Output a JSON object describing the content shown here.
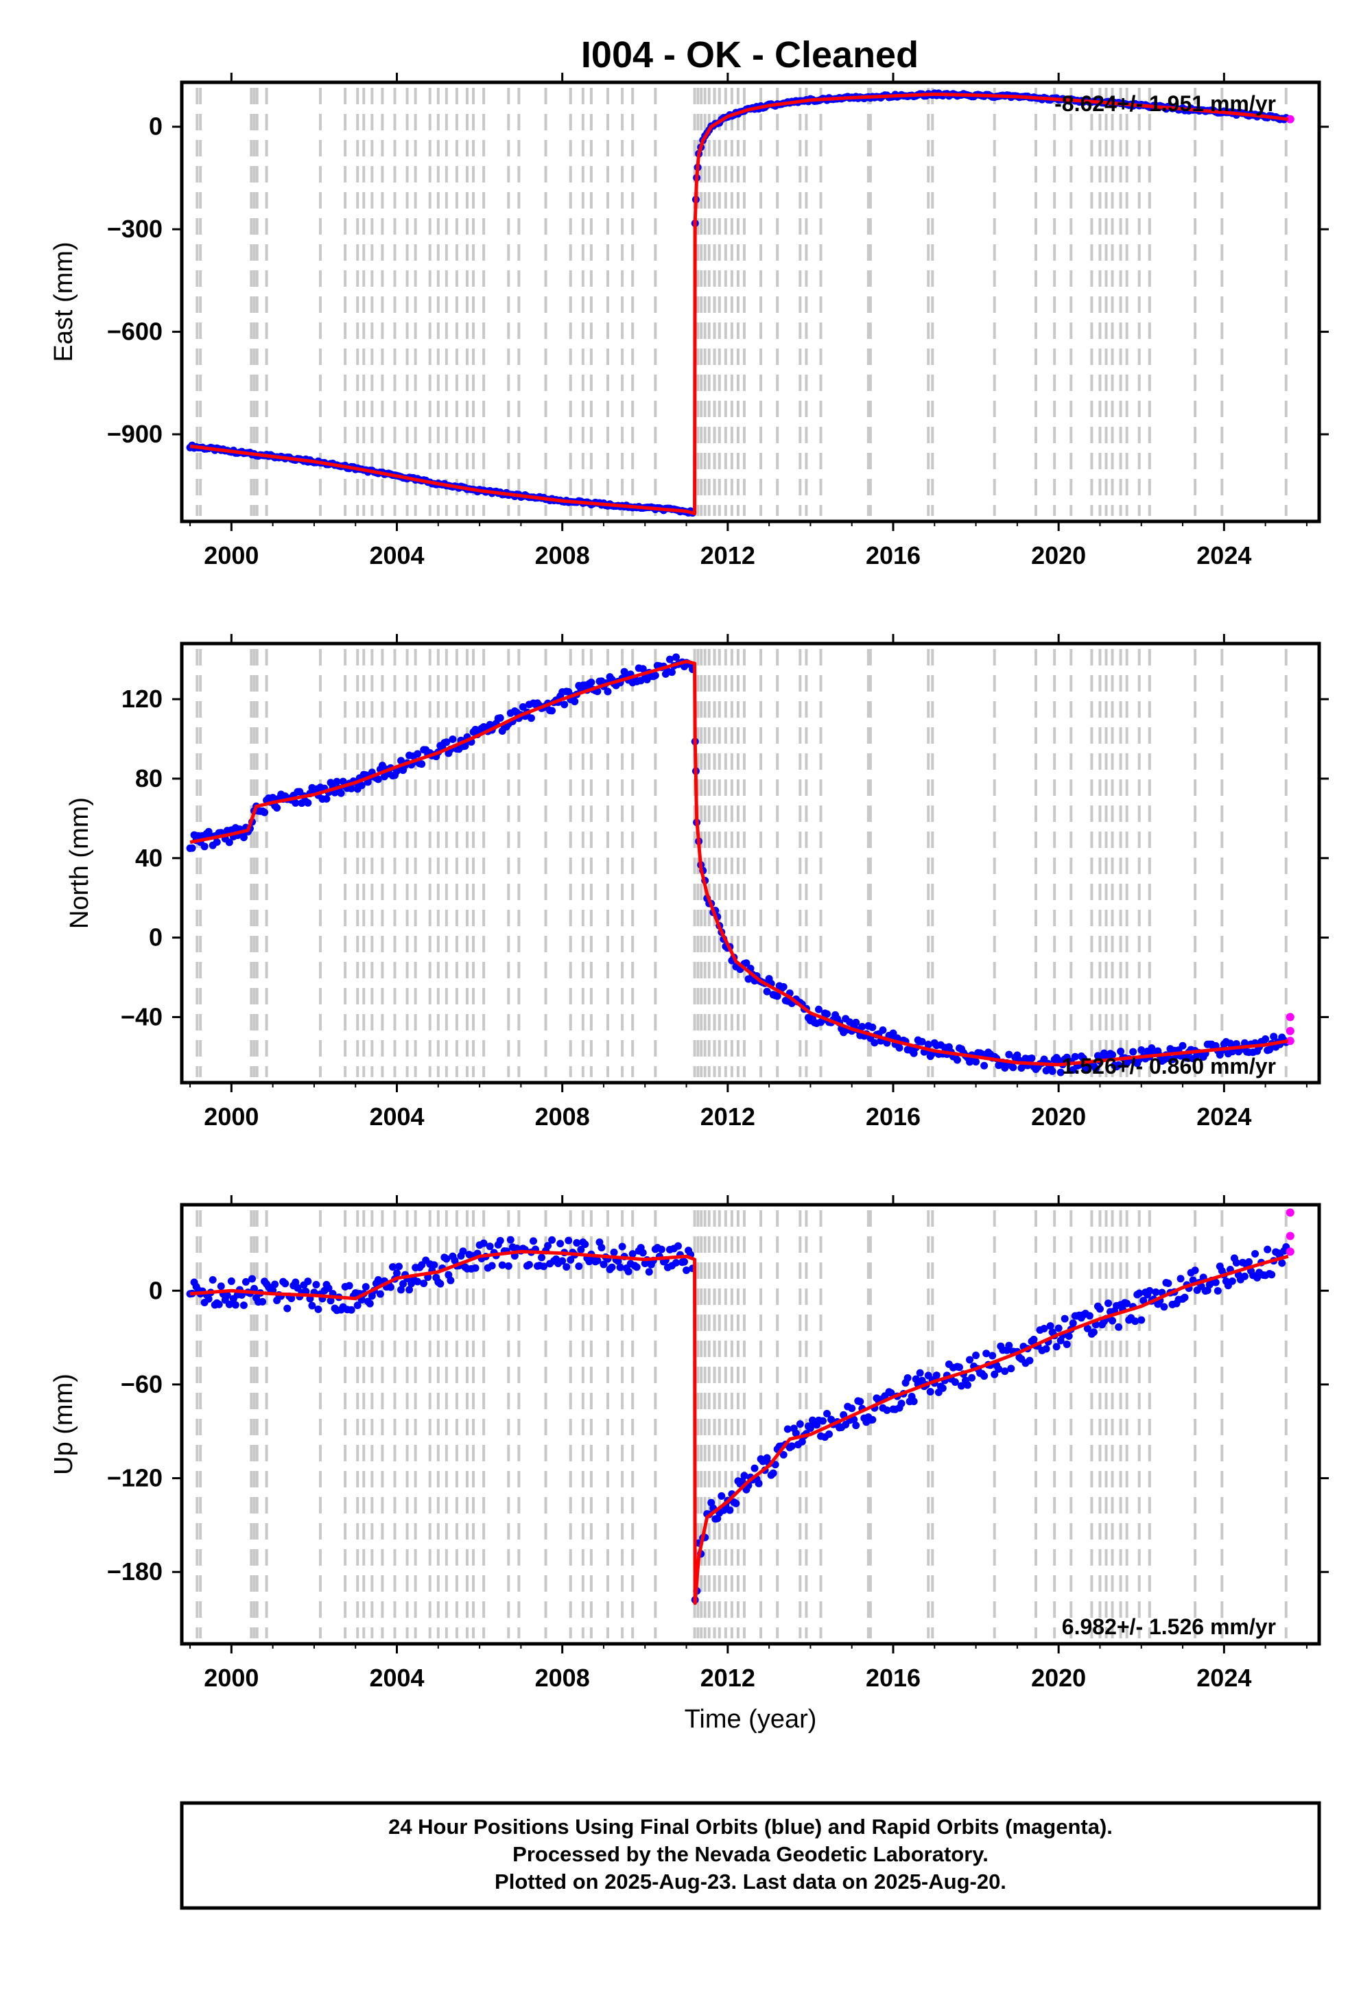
{
  "title": "I004  - OK - Cleaned",
  "colors": {
    "final_orbits": "#0000ff",
    "rapid_orbits": "#ff00ff",
    "model_line": "#ff0000",
    "event_lines": "#c8c8c8",
    "frame": "#000000"
  },
  "chart_data": [
    {
      "type": "scatter",
      "panel": "east",
      "ylabel": "East (mm)",
      "xlabel": "",
      "xlim": [
        1998.8,
        2026.3
      ],
      "ylim": [
        -1155,
        130
      ],
      "x_ticks": [
        "2000",
        "2004",
        "2008",
        "2012",
        "2016",
        "2020",
        "2024"
      ],
      "y_ticks": [
        "0",
        "−300",
        "−600",
        "−900"
      ],
      "y_tick_values": [
        0,
        -300,
        -600,
        -900
      ],
      "rate_text": "-8.624+/- 1.951 mm/yr",
      "series": [
        {
          "color": "#0000ff",
          "markers": "dots",
          "x": [
            1999.0,
            2000.0,
            2001.0,
            2002.0,
            2003.0,
            2004.0,
            2005.0,
            2006.0,
            2007.0,
            2008.0,
            2009.0,
            2010.0,
            2011.0,
            2011.2
          ],
          "y": [
            -935,
            -950,
            -965,
            -980,
            -1000,
            -1022,
            -1045,
            -1065,
            -1080,
            -1095,
            -1105,
            -1115,
            -1125,
            -1132
          ]
        },
        {
          "color": "#0000ff",
          "markers": "dots",
          "x": [
            2011.21,
            2011.25,
            2011.3,
            2011.4,
            2011.6,
            2012.0,
            2012.5,
            2013.0,
            2014.0,
            2015.0,
            2016.0,
            2017.0,
            2018.0,
            2019.0,
            2020.0,
            2021.0,
            2022.0,
            2023.0,
            2024.0,
            2025.0,
            2025.55
          ],
          "y": [
            -280,
            -150,
            -80,
            -40,
            0,
            30,
            50,
            62,
            78,
            85,
            90,
            95,
            92,
            88,
            80,
            72,
            62,
            52,
            42,
            30,
            22
          ]
        },
        {
          "color": "#ff00ff",
          "markers": "dots",
          "x": [
            2025.6
          ],
          "y": [
            22
          ]
        }
      ]
    },
    {
      "type": "scatter",
      "panel": "north",
      "ylabel": "North (mm)",
      "xlabel": "",
      "xlim": [
        1998.8,
        2026.3
      ],
      "ylim": [
        -73,
        148
      ],
      "x_ticks": [
        "2000",
        "2004",
        "2008",
        "2012",
        "2016",
        "2020",
        "2024"
      ],
      "y_ticks": [
        "120",
        "80",
        "40",
        "0",
        "−40"
      ],
      "y_tick_values": [
        120,
        80,
        40,
        0,
        -40
      ],
      "rate_text": "1.526+/- 0.860 mm/yr",
      "series": [
        {
          "color": "#0000ff",
          "markers": "dots",
          "x": [
            1999.0,
            1999.5,
            2000.0,
            2000.4,
            2000.6,
            2001.0,
            2002.0,
            2003.0,
            2004.0,
            2005.0,
            2006.0,
            2007.0,
            2008.0,
            2009.0,
            2010.0,
            2011.0,
            2011.2
          ],
          "y": [
            48,
            50,
            52,
            54,
            66,
            68,
            72,
            78,
            86,
            93,
            102,
            112,
            120,
            127,
            133,
            139,
            138
          ]
        },
        {
          "color": "#0000ff",
          "markers": "dots",
          "x": [
            2011.21,
            2011.25,
            2011.35,
            2011.5,
            2011.8,
            2012.2,
            2012.8,
            2013.5,
            2014.0,
            2015.0,
            2016.0,
            2017.0,
            2018.0,
            2019.0,
            2020.0,
            2021.0,
            2022.0,
            2023.0,
            2024.0,
            2025.0,
            2025.55
          ],
          "y": [
            100,
            60,
            35,
            22,
            5,
            -12,
            -22,
            -30,
            -38,
            -46,
            -52,
            -57,
            -60,
            -63,
            -64,
            -62,
            -60,
            -58,
            -56,
            -54,
            -52
          ]
        },
        {
          "color": "#ff00ff",
          "markers": "dots",
          "x": [
            2025.6,
            2025.6,
            2025.6
          ],
          "y": [
            -40,
            -47,
            -52
          ]
        }
      ]
    },
    {
      "type": "scatter",
      "panel": "up",
      "ylabel": "Up (mm)",
      "xlabel": "Time (year)",
      "xlim": [
        1998.8,
        2026.3
      ],
      "ylim": [
        -226,
        55
      ],
      "x_ticks": [
        "2000",
        "2004",
        "2008",
        "2012",
        "2016",
        "2020",
        "2024"
      ],
      "y_ticks": [
        "0",
        "−60",
        "−120",
        "−180"
      ],
      "y_tick_values": [
        0,
        -60,
        -120,
        -180
      ],
      "rate_text": "6.982+/- 1.526 mm/yr",
      "series": [
        {
          "color": "#0000ff",
          "markers": "dots",
          "x": [
            1999.0,
            2000.0,
            2001.0,
            2002.0,
            2003.0,
            2004.0,
            2005.0,
            2006.0,
            2007.0,
            2008.0,
            2009.0,
            2010.0,
            2011.0,
            2011.2
          ],
          "y": [
            -2,
            0,
            -2,
            -3,
            -5,
            8,
            12,
            22,
            25,
            24,
            22,
            20,
            22,
            20
          ]
        },
        {
          "color": "#0000ff",
          "markers": "dots",
          "x": [
            2011.21,
            2011.3,
            2011.5,
            2012.0,
            2012.5,
            2013.0,
            2013.5,
            2014.0,
            2015.0,
            2016.0,
            2017.0,
            2018.0,
            2019.0,
            2020.0,
            2021.0,
            2022.0,
            2023.0,
            2024.0,
            2025.0,
            2025.55
          ],
          "y": [
            -200,
            -170,
            -145,
            -135,
            -122,
            -112,
            -95,
            -92,
            -80,
            -68,
            -58,
            -50,
            -40,
            -28,
            -18,
            -10,
            2,
            10,
            18,
            22
          ]
        },
        {
          "color": "#ff00ff",
          "markers": "dots",
          "x": [
            2025.6,
            2025.6,
            2025.6
          ],
          "y": [
            50,
            35,
            25
          ]
        }
      ]
    }
  ],
  "event_years": [
    1999.17,
    1999.25,
    2000.48,
    2000.55,
    2000.62,
    2000.85,
    2002.15,
    2002.75,
    2003.05,
    2003.2,
    2003.4,
    2003.65,
    2003.95,
    2004.25,
    2004.45,
    2004.8,
    2005.0,
    2005.2,
    2005.45,
    2005.7,
    2005.85,
    2006.1,
    2006.7,
    2006.95,
    2007.6,
    2008.2,
    2008.5,
    2008.7,
    2009.1,
    2009.45,
    2009.7,
    2010.25,
    2011.2,
    2011.28,
    2011.36,
    2011.45,
    2011.55,
    2011.68,
    2011.8,
    2011.95,
    2012.1,
    2012.25,
    2012.4,
    2012.8,
    2013.2,
    2013.75,
    2013.9,
    2014.25,
    2015.4,
    2015.45,
    2016.85,
    2016.95,
    2018.45,
    2019.45,
    2019.9,
    2020.3,
    2020.8,
    2021.0,
    2021.15,
    2021.3,
    2021.5,
    2021.65,
    2021.95,
    2022.2,
    2023.3,
    2023.95,
    2025.5
  ],
  "footer": {
    "line1": "24 Hour Positions Using Final Orbits (blue) and Rapid Orbits (magenta).",
    "line2": "Processed by the Nevada Geodetic Laboratory.",
    "line3": "Plotted on 2025-Aug-23. Last data on 2025-Aug-20."
  }
}
